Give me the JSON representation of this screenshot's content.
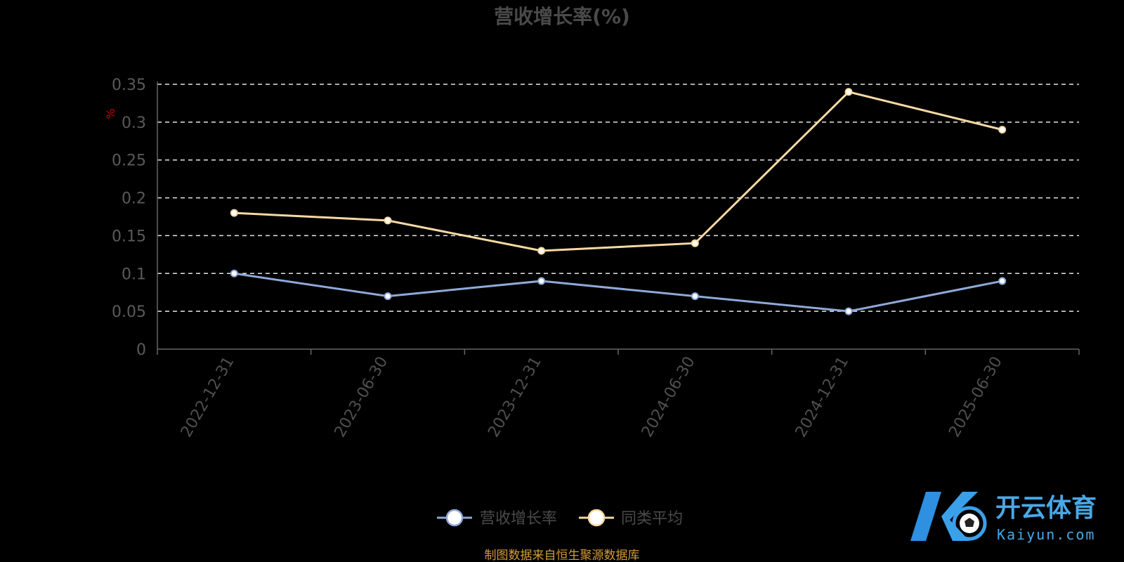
{
  "chart_data": {
    "type": "line",
    "title": "营收增长率(%)",
    "ylabel": "%",
    "ylim": [
      0,
      0.35
    ],
    "yticks": [
      "0",
      "0.05",
      "0.1",
      "0.15",
      "0.2",
      "0.25",
      "0.3",
      "0.35"
    ],
    "categories": [
      "2022-12-31",
      "2023-06-30",
      "2023-12-31",
      "2024-06-30",
      "2024-12-31",
      "2025-06-30"
    ],
    "grid": true,
    "legend_position": "bottom-center",
    "series": [
      {
        "name": "营收增长率",
        "color": "#8fa9d8",
        "values": [
          0.1,
          0.07,
          0.09,
          0.07,
          0.05,
          0.09
        ]
      },
      {
        "name": "同类平均",
        "color": "#f6d9a3",
        "values": [
          0.18,
          0.17,
          0.13,
          0.14,
          0.34,
          0.29
        ]
      }
    ]
  },
  "source_note": "制图数据来自恒生聚源数据库",
  "watermark": {
    "brand": "开云体育",
    "site": "Kaiyun.com",
    "logo_letter": "K"
  },
  "colors": {
    "background": "#000000",
    "grid": "#e6e6e6",
    "axis": "#666666"
  }
}
